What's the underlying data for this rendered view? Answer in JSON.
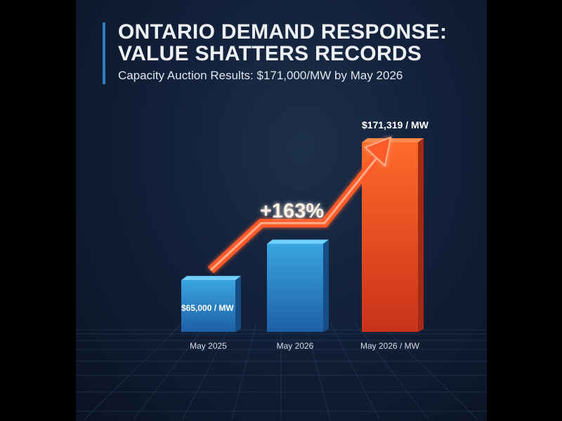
{
  "header": {
    "title_line1": "ONTARIO DEMAND RESPONSE:",
    "title_line2": "VALUE SHATTERS RECORDS",
    "subtitle": "Capacity Auction Results: $171,000/MW by May 2026"
  },
  "colors": {
    "background": "#12203a",
    "accent": "#2b7fbf",
    "blue_bar": "#2f8fd0",
    "orange_bar": "#ef5a24",
    "arrow": "#ff5a2a"
  },
  "chart_data": {
    "type": "bar",
    "title": "ONTARIO DEMAND RESPONSE: VALUE SHATTERS RECORDS",
    "subtitle": "Capacity Auction Results: $171,000/MW by May 2026",
    "categories": [
      "May 2025",
      "May 2026",
      "May 2026 / MW"
    ],
    "values": [
      65000,
      93000,
      171319
    ],
    "data_labels": [
      "$65,000 / MW",
      "",
      "$171,319 / MW"
    ],
    "annotation": "+163%",
    "ylim": [
      25000,
      180000
    ],
    "grid": false,
    "bar_colors": [
      "#2f8fd0",
      "#2f8fd0",
      "#ef5a24"
    ]
  }
}
